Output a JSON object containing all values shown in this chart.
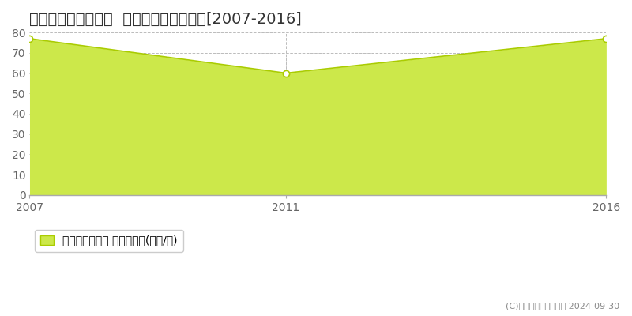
{
  "title": "名古屋市北区生駒町  マンション価格推移[2007-2016]",
  "years": [
    2007,
    2011,
    2016
  ],
  "values": [
    77,
    60,
    77
  ],
  "xlim": [
    2007,
    2016
  ],
  "ylim": [
    0,
    80
  ],
  "yticks": [
    0,
    10,
    20,
    30,
    40,
    50,
    60,
    70,
    80
  ],
  "xticks": [
    2007,
    2011,
    2016
  ],
  "line_color": "#aacc00",
  "fill_color": "#cce84a",
  "fill_alpha": 1.0,
  "marker_color": "white",
  "marker_edge_color": "#aacc00",
  "grid_color": "#bbbbbb",
  "bg_color": "#ffffff",
  "plot_bg_color": "#ffffff",
  "legend_label": "マンション価格 平均坪単価(万円/坪)",
  "copyright_text": "(C)土地価格ドットコム 2024-09-30",
  "title_fontsize": 14,
  "tick_fontsize": 10,
  "legend_fontsize": 10
}
